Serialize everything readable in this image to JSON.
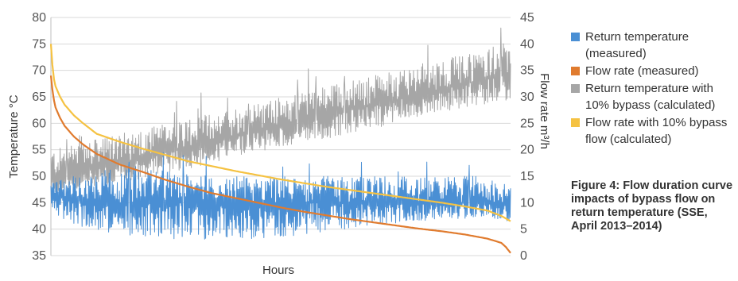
{
  "chart_data": {
    "type": "line",
    "xlabel": "Hours",
    "ylabel_left": "Temperature °C",
    "ylabel_right": "Flow rate m³/h",
    "ylim_left": [
      35,
      80
    ],
    "ylim_right": [
      0,
      45
    ],
    "yticks_left": [
      "80",
      "75",
      "70",
      "65",
      "60",
      "55",
      "50",
      "45",
      "40",
      "35"
    ],
    "yticks_right": [
      "45",
      "40",
      "35",
      "30",
      "25",
      "20",
      "15",
      "10",
      "5",
      "0"
    ],
    "grid": true,
    "series": [
      {
        "name": "Return temperature (measured)",
        "axis": "left",
        "color": "#4a8fd4",
        "x": [
          0,
          0.05,
          0.1,
          0.15,
          0.2,
          0.25,
          0.3,
          0.35,
          0.4,
          0.45,
          0.5,
          0.55,
          0.6,
          0.65,
          0.7,
          0.75,
          0.8,
          0.85,
          0.9,
          0.95,
          1.0
        ],
        "center": [
          46,
          46,
          45.5,
          45,
          45,
          45,
          45,
          45,
          45,
          45,
          45,
          45,
          45,
          45,
          45,
          45,
          45,
          45,
          45,
          45,
          44.5
        ],
        "low": [
          43,
          41,
          39.5,
          39,
          38.5,
          38,
          38,
          38,
          38,
          38,
          38.5,
          39,
          39.5,
          40,
          40.5,
          41,
          41.5,
          42,
          42,
          42.5,
          41
        ],
        "high": [
          49,
          50,
          51,
          51.5,
          51.5,
          51,
          50.5,
          50,
          50,
          50,
          50,
          50,
          50,
          50,
          50,
          50,
          50,
          50,
          50,
          50,
          49
        ]
      },
      {
        "name": "Flow rate  (measured)",
        "axis": "right",
        "color": "#e07b2e",
        "x": [
          0,
          0.005,
          0.01,
          0.02,
          0.03,
          0.05,
          0.07,
          0.1,
          0.15,
          0.2,
          0.25,
          0.3,
          0.35,
          0.4,
          0.45,
          0.5,
          0.55,
          0.6,
          0.65,
          0.7,
          0.75,
          0.8,
          0.85,
          0.9,
          0.95,
          0.98,
          0.99,
          1.0
        ],
        "values": [
          34,
          30,
          28,
          26,
          24.5,
          22.5,
          21,
          19.2,
          17.2,
          15.8,
          14.3,
          13,
          11.8,
          10.9,
          10,
          9.1,
          8.3,
          7.6,
          6.9,
          6.3,
          5.7,
          5.1,
          4.6,
          4.0,
          3.2,
          2.4,
          1.6,
          0.5
        ]
      },
      {
        "name": "Return temperature with 10% bypass (calculated)",
        "axis": "left",
        "color": "#a6a6a6",
        "x": [
          0,
          0.05,
          0.1,
          0.15,
          0.2,
          0.25,
          0.3,
          0.35,
          0.4,
          0.45,
          0.5,
          0.55,
          0.6,
          0.65,
          0.7,
          0.75,
          0.8,
          0.85,
          0.9,
          0.95,
          1.0
        ],
        "center": [
          49.5,
          50.5,
          51.5,
          52.5,
          53.5,
          54.5,
          55.5,
          56.5,
          57.5,
          58.5,
          59.5,
          60.5,
          61.5,
          62.5,
          63.5,
          64.5,
          65.5,
          66.5,
          67.5,
          68.5,
          69.5
        ],
        "low": [
          46.5,
          47.5,
          48,
          49,
          49.5,
          50.5,
          51.5,
          52.5,
          53.5,
          54.5,
          55.5,
          56.5,
          57,
          58,
          59,
          60,
          61,
          62,
          63,
          63.5,
          64.5
        ],
        "high": [
          55,
          56,
          57,
          58,
          59,
          60,
          61,
          62,
          63,
          64,
          65,
          66,
          67,
          68,
          69,
          70,
          71,
          72,
          73,
          74,
          76
        ]
      },
      {
        "name": "Flow rate with 10% bypass flow (calculated)",
        "axis": "right",
        "color": "#f5c242",
        "x": [
          0,
          0.005,
          0.01,
          0.02,
          0.03,
          0.05,
          0.07,
          0.1,
          0.15,
          0.2,
          0.25,
          0.3,
          0.35,
          0.4,
          0.45,
          0.5,
          0.55,
          0.6,
          0.65,
          0.7,
          0.75,
          0.8,
          0.85,
          0.9,
          0.95,
          0.98,
          1.0
        ],
        "values": [
          40,
          34,
          32,
          30,
          28.5,
          26.5,
          25,
          23,
          21.5,
          20.2,
          19,
          17.8,
          16.9,
          16,
          15.2,
          14.4,
          13.7,
          13,
          12.4,
          11.8,
          11.2,
          10.6,
          10,
          9.3,
          8.5,
          7.5,
          6.5
        ]
      }
    ]
  },
  "legend": [
    {
      "label": "Return temperature (measured)",
      "color": "#4a8fd4"
    },
    {
      "label": "Flow rate  (measured)",
      "color": "#e07b2e"
    },
    {
      "label": "Return temperature with 10% bypass (calculated)",
      "color": "#a6a6a6"
    },
    {
      "label": "Flow rate with 10% bypass flow (calculated)",
      "color": "#f5c242"
    }
  ],
  "caption": "Figure 4: Flow duration curve impacts of bypass flow on return temperature (SSE, April 2013–2014)"
}
